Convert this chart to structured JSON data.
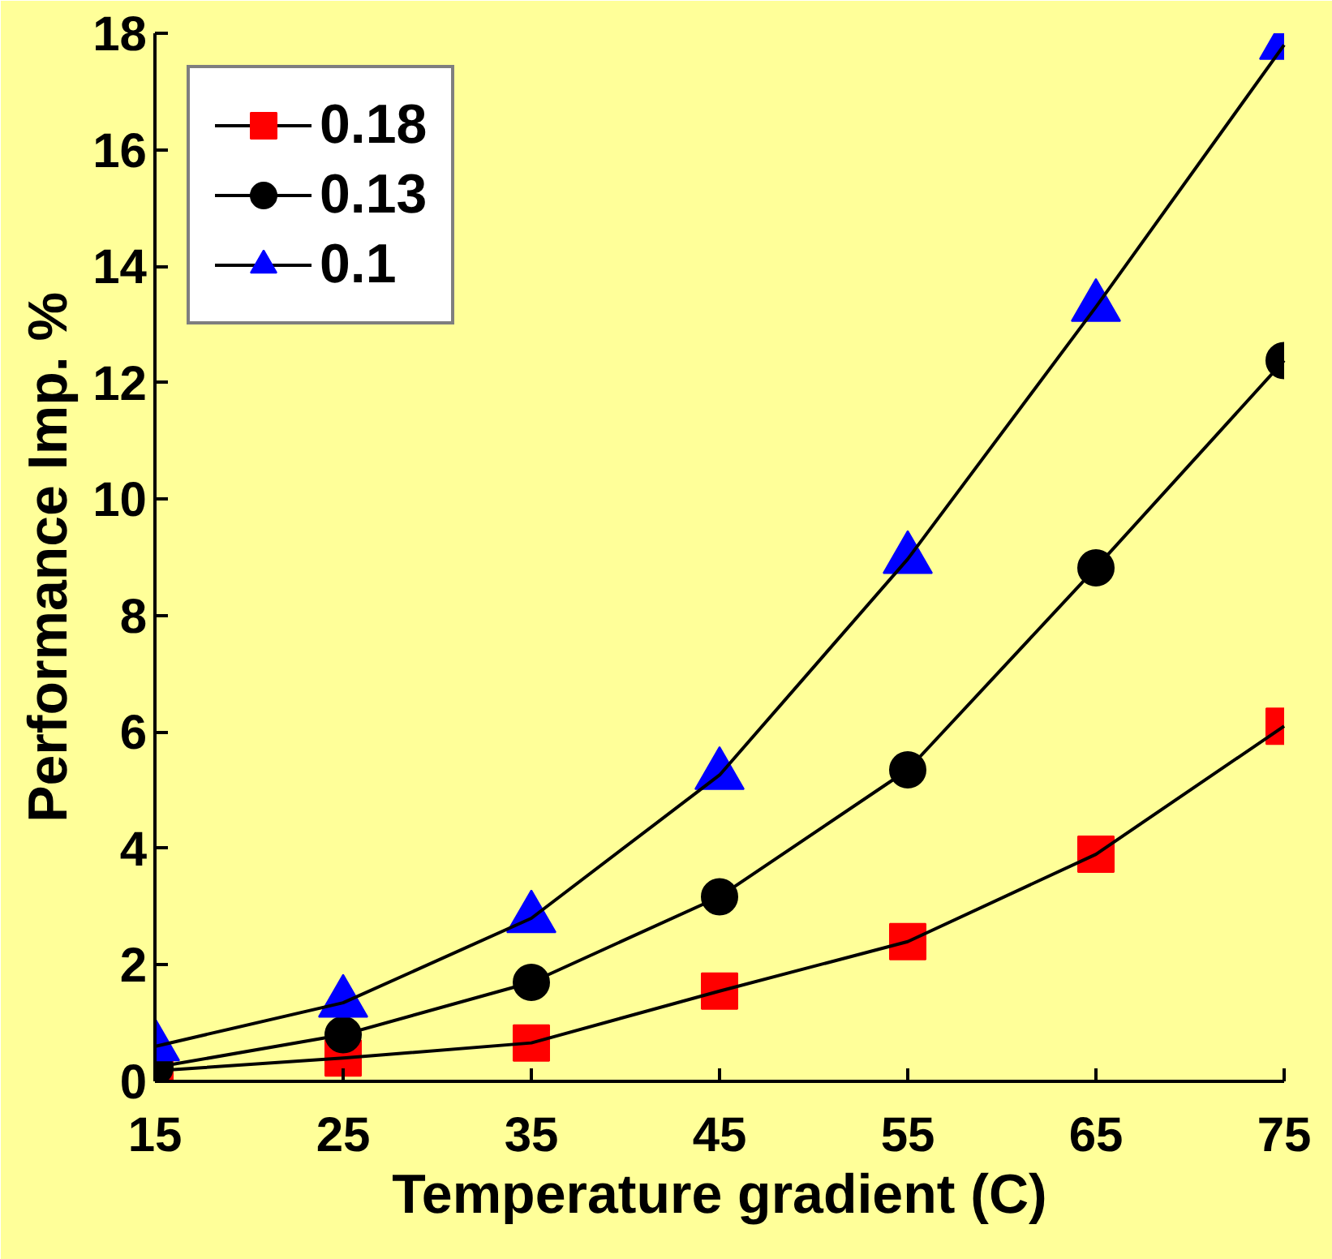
{
  "chart_data": {
    "type": "line",
    "xlabel": "Temperature gradient (C)",
    "ylabel": "Performance Imp. %",
    "x": [
      15,
      25,
      35,
      45,
      55,
      65,
      75
    ],
    "series": [
      {
        "name": "0.18",
        "color": "#ff0000",
        "marker": "square",
        "values": [
          0.18,
          0.4,
          0.66,
          1.55,
          2.4,
          3.9,
          6.1
        ]
      },
      {
        "name": "0.13",
        "color": "#000000",
        "marker": "circle",
        "values": [
          0.24,
          0.8,
          1.7,
          3.17,
          5.35,
          8.82,
          12.38
        ]
      },
      {
        "name": "0.1",
        "color": "#0000ff",
        "marker": "triangle",
        "values": [
          0.6,
          1.35,
          2.8,
          5.26,
          8.97,
          13.3,
          17.8
        ]
      }
    ],
    "xlim": [
      15,
      75
    ],
    "ylim": [
      0,
      18
    ],
    "xticks": [
      15,
      25,
      35,
      45,
      55,
      65,
      75
    ],
    "yticks": [
      0,
      2,
      4,
      6,
      8,
      10,
      12,
      14,
      16,
      18
    ],
    "grid": false,
    "legend": "top left",
    "line_style": "solid"
  }
}
